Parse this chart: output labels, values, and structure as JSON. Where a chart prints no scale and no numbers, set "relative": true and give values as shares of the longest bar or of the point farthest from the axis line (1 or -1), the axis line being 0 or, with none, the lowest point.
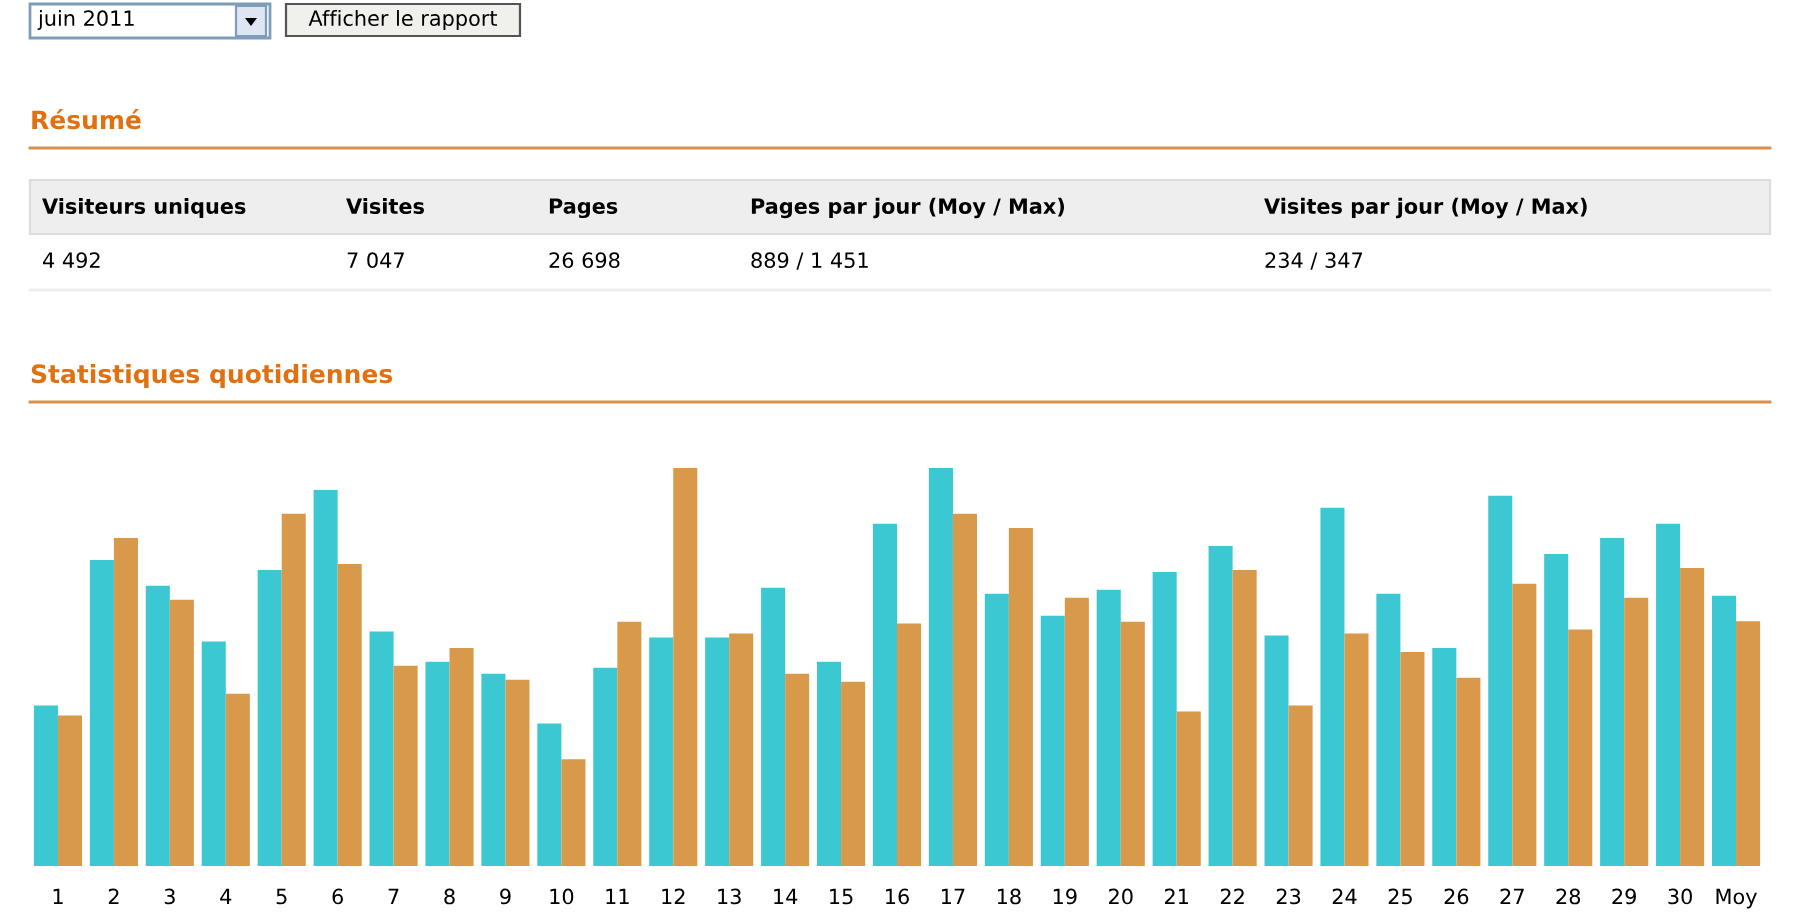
{
  "chart_data": [
    {
      "type": "other",
      "title": "Résumé",
      "annotations": [
        "juin 2011",
        "Afficher le rapport",
        "Visiteurs uniques",
        "Visites",
        "Pages",
        "Pages par jour (Moy / Max)",
        "Visites par jour (Moy / Max)",
        "4 492",
        "7 047",
        "26 698",
        "889 / 1 451",
        "234 / 347"
      ]
    },
    {
      "type": "bar",
      "title": "Statistiques quotidiennes",
      "relative": true,
      "categories": [
        "1",
        "2",
        "3",
        "4",
        "5",
        "6",
        "7",
        "8",
        "9",
        "10",
        "11",
        "12",
        "13",
        "14",
        "15",
        "16",
        "17",
        "18",
        "19",
        "20",
        "21",
        "22",
        "23",
        "24",
        "25",
        "26",
        "27",
        "28",
        "29",
        "30",
        "Moy"
      ],
      "series": [
        {
          "color": "#3cc8d2",
          "values": [
            0.403,
            0.769,
            0.704,
            0.564,
            0.744,
            0.945,
            0.589,
            0.513,
            0.483,
            0.358,
            0.498,
            0.574,
            0.574,
            0.699,
            0.513,
            0.86,
            1.0,
            0.684,
            0.629,
            0.694,
            0.739,
            0.804,
            0.579,
            0.9,
            0.684,
            0.548,
            0.93,
            0.784,
            0.824,
            0.86,
            0.679
          ]
        },
        {
          "color": "#d9994a",
          "values": [
            0.378,
            0.824,
            0.669,
            0.433,
            0.885,
            0.759,
            0.503,
            0.548,
            0.468,
            0.268,
            0.614,
            1.0,
            0.584,
            0.483,
            0.463,
            0.609,
            0.885,
            0.849,
            0.674,
            0.614,
            0.388,
            0.744,
            0.403,
            0.584,
            0.538,
            0.473,
            0.709,
            0.594,
            0.674,
            0.749,
            0.615
          ]
        }
      ]
    }
  ]
}
